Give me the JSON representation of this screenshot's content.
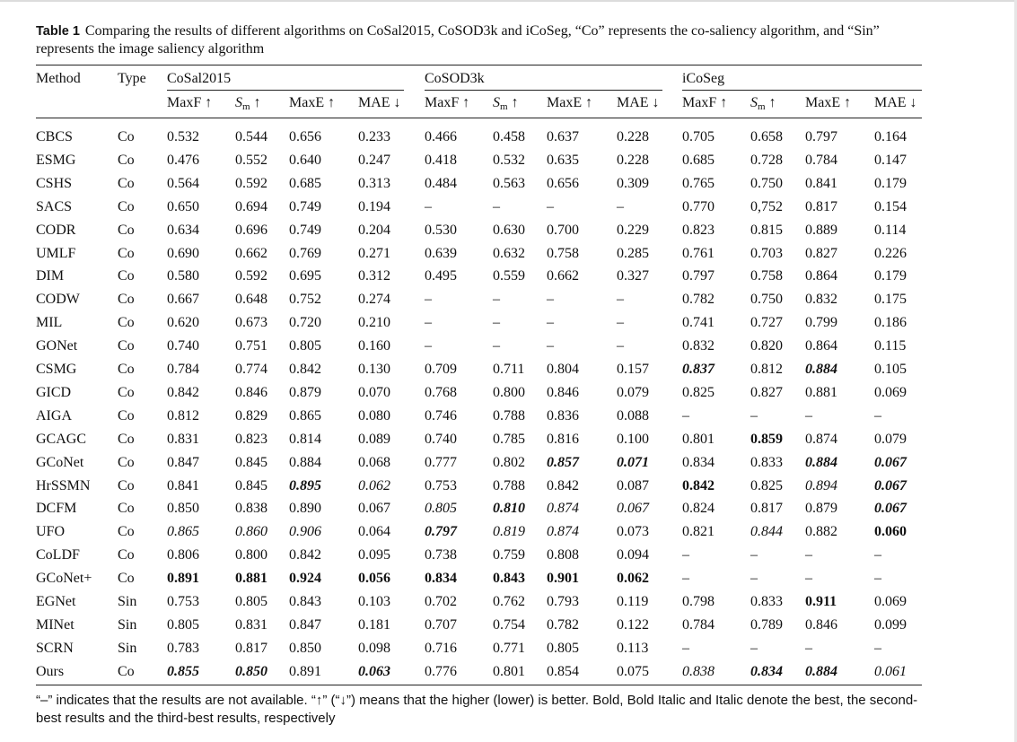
{
  "caption": {
    "label": "Table 1",
    "text": "Comparing the results of different algorithms on CoSal2015, CoSOD3k and iCoSeg, “Co” represents the co-saliency algorithm, and “Sin” represents the image saliency algorithm"
  },
  "header": {
    "method": "Method",
    "type": "Type",
    "groups": [
      "CoSal2015",
      "CoSOD3k",
      "iCoSeg"
    ],
    "metrics": [
      "MaxF ↑",
      "S",
      "m",
      " ↑",
      "MaxE ↑",
      "MAE ↓"
    ]
  },
  "rows": [
    {
      "m": "CBCS",
      "t": "Co",
      "v": [
        [
          "0.532",
          ""
        ],
        [
          "0.544",
          ""
        ],
        [
          "0.656",
          ""
        ],
        [
          "0.233",
          ""
        ],
        [
          "0.466",
          ""
        ],
        [
          "0.458",
          ""
        ],
        [
          "0.637",
          ""
        ],
        [
          "0.228",
          ""
        ],
        [
          "0.705",
          ""
        ],
        [
          "0.658",
          ""
        ],
        [
          "0.797",
          ""
        ],
        [
          "0.164",
          ""
        ]
      ]
    },
    {
      "m": "ESMG",
      "t": "Co",
      "v": [
        [
          "0.476",
          ""
        ],
        [
          "0.552",
          ""
        ],
        [
          "0.640",
          ""
        ],
        [
          "0.247",
          ""
        ],
        [
          "0.418",
          ""
        ],
        [
          "0.532",
          ""
        ],
        [
          "0.635",
          ""
        ],
        [
          "0.228",
          ""
        ],
        [
          "0.685",
          ""
        ],
        [
          "0.728",
          ""
        ],
        [
          "0.784",
          ""
        ],
        [
          "0.147",
          ""
        ]
      ]
    },
    {
      "m": "CSHS",
      "t": "Co",
      "v": [
        [
          "0.564",
          ""
        ],
        [
          "0.592",
          ""
        ],
        [
          "0.685",
          ""
        ],
        [
          "0.313",
          ""
        ],
        [
          "0.484",
          ""
        ],
        [
          "0.563",
          ""
        ],
        [
          "0.656",
          ""
        ],
        [
          "0.309",
          ""
        ],
        [
          "0.765",
          ""
        ],
        [
          "0.750",
          ""
        ],
        [
          "0.841",
          ""
        ],
        [
          "0.179",
          ""
        ]
      ]
    },
    {
      "m": "SACS",
      "t": "Co",
      "v": [
        [
          "0.650",
          ""
        ],
        [
          "0.694",
          ""
        ],
        [
          "0.749",
          ""
        ],
        [
          "0.194",
          ""
        ],
        [
          "–",
          ""
        ],
        [
          "–",
          ""
        ],
        [
          "–",
          ""
        ],
        [
          "–",
          ""
        ],
        [
          "0.770",
          ""
        ],
        [
          "0,752",
          ""
        ],
        [
          "0.817",
          ""
        ],
        [
          "0.154",
          ""
        ]
      ]
    },
    {
      "m": "CODR",
      "t": "Co",
      "v": [
        [
          "0.634",
          ""
        ],
        [
          "0.696",
          ""
        ],
        [
          "0.749",
          ""
        ],
        [
          "0.204",
          ""
        ],
        [
          "0.530",
          ""
        ],
        [
          "0.630",
          ""
        ],
        [
          "0.700",
          ""
        ],
        [
          "0.229",
          ""
        ],
        [
          "0.823",
          ""
        ],
        [
          "0.815",
          ""
        ],
        [
          "0.889",
          ""
        ],
        [
          "0.114",
          ""
        ]
      ]
    },
    {
      "m": "UMLF",
      "t": "Co",
      "v": [
        [
          "0.690",
          ""
        ],
        [
          "0.662",
          ""
        ],
        [
          "0.769",
          ""
        ],
        [
          "0.271",
          ""
        ],
        [
          "0.639",
          ""
        ],
        [
          "0.632",
          ""
        ],
        [
          "0.758",
          ""
        ],
        [
          "0.285",
          ""
        ],
        [
          "0.761",
          ""
        ],
        [
          "0.703",
          ""
        ],
        [
          "0.827",
          ""
        ],
        [
          "0.226",
          ""
        ]
      ]
    },
    {
      "m": "DIM",
      "t": "Co",
      "v": [
        [
          "0.580",
          ""
        ],
        [
          "0.592",
          ""
        ],
        [
          "0.695",
          ""
        ],
        [
          "0.312",
          ""
        ],
        [
          "0.495",
          ""
        ],
        [
          "0.559",
          ""
        ],
        [
          "0.662",
          ""
        ],
        [
          "0.327",
          ""
        ],
        [
          "0.797",
          ""
        ],
        [
          "0.758",
          ""
        ],
        [
          "0.864",
          ""
        ],
        [
          "0.179",
          ""
        ]
      ]
    },
    {
      "m": "CODW",
      "t": "Co",
      "v": [
        [
          "0.667",
          ""
        ],
        [
          "0.648",
          ""
        ],
        [
          "0.752",
          ""
        ],
        [
          "0.274",
          ""
        ],
        [
          "–",
          ""
        ],
        [
          "–",
          ""
        ],
        [
          "–",
          ""
        ],
        [
          "–",
          ""
        ],
        [
          "0.782",
          ""
        ],
        [
          "0.750",
          ""
        ],
        [
          "0.832",
          ""
        ],
        [
          "0.175",
          ""
        ]
      ]
    },
    {
      "m": "MIL",
      "t": "Co",
      "v": [
        [
          "0.620",
          ""
        ],
        [
          "0.673",
          ""
        ],
        [
          "0.720",
          ""
        ],
        [
          "0.210",
          ""
        ],
        [
          "–",
          ""
        ],
        [
          "–",
          ""
        ],
        [
          "–",
          ""
        ],
        [
          "–",
          ""
        ],
        [
          "0.741",
          ""
        ],
        [
          "0.727",
          ""
        ],
        [
          "0.799",
          ""
        ],
        [
          "0.186",
          ""
        ]
      ]
    },
    {
      "m": "GONet",
      "t": "Co",
      "v": [
        [
          "0.740",
          ""
        ],
        [
          "0.751",
          ""
        ],
        [
          "0.805",
          ""
        ],
        [
          "0.160",
          ""
        ],
        [
          "–",
          ""
        ],
        [
          "–",
          ""
        ],
        [
          "–",
          ""
        ],
        [
          "–",
          ""
        ],
        [
          "0.832",
          ""
        ],
        [
          "0.820",
          ""
        ],
        [
          "0.864",
          ""
        ],
        [
          "0.115",
          ""
        ]
      ]
    },
    {
      "m": "CSMG",
      "t": "Co",
      "v": [
        [
          "0.784",
          ""
        ],
        [
          "0.774",
          ""
        ],
        [
          "0.842",
          ""
        ],
        [
          "0.130",
          ""
        ],
        [
          "0.709",
          ""
        ],
        [
          "0.711",
          ""
        ],
        [
          "0.804",
          ""
        ],
        [
          "0.157",
          ""
        ],
        [
          "0.837",
          "bi"
        ],
        [
          "0.812",
          ""
        ],
        [
          "0.884",
          "bi"
        ],
        [
          "0.105",
          ""
        ]
      ]
    },
    {
      "m": "GICD",
      "t": "Co",
      "v": [
        [
          "0.842",
          ""
        ],
        [
          "0.846",
          ""
        ],
        [
          "0.879",
          ""
        ],
        [
          "0.070",
          ""
        ],
        [
          "0.768",
          ""
        ],
        [
          "0.800",
          ""
        ],
        [
          "0.846",
          ""
        ],
        [
          "0.079",
          ""
        ],
        [
          "0.825",
          ""
        ],
        [
          "0.827",
          ""
        ],
        [
          "0.881",
          ""
        ],
        [
          "0.069",
          ""
        ]
      ]
    },
    {
      "m": "AIGA",
      "t": "Co",
      "v": [
        [
          "0.812",
          ""
        ],
        [
          "0.829",
          ""
        ],
        [
          "0.865",
          ""
        ],
        [
          "0.080",
          ""
        ],
        [
          "0.746",
          ""
        ],
        [
          "0.788",
          ""
        ],
        [
          "0.836",
          ""
        ],
        [
          "0.088",
          ""
        ],
        [
          "–",
          ""
        ],
        [
          "–",
          ""
        ],
        [
          "–",
          ""
        ],
        [
          "–",
          ""
        ]
      ]
    },
    {
      "m": "GCAGC",
      "t": "Co",
      "v": [
        [
          "0.831",
          ""
        ],
        [
          "0.823",
          ""
        ],
        [
          "0.814",
          ""
        ],
        [
          "0.089",
          ""
        ],
        [
          "0.740",
          ""
        ],
        [
          "0.785",
          ""
        ],
        [
          "0.816",
          ""
        ],
        [
          "0.100",
          ""
        ],
        [
          "0.801",
          ""
        ],
        [
          "0.859",
          "b"
        ],
        [
          "0.874",
          ""
        ],
        [
          "0.079",
          ""
        ]
      ]
    },
    {
      "m": "GCoNet",
      "t": "Co",
      "v": [
        [
          "0.847",
          ""
        ],
        [
          "0.845",
          ""
        ],
        [
          "0.884",
          ""
        ],
        [
          "0.068",
          ""
        ],
        [
          "0.777",
          ""
        ],
        [
          "0.802",
          ""
        ],
        [
          "0.857",
          "bi"
        ],
        [
          "0.071",
          "bi"
        ],
        [
          "0.834",
          ""
        ],
        [
          "0.833",
          ""
        ],
        [
          "0.884",
          "bi"
        ],
        [
          "0.067",
          "bi"
        ]
      ]
    },
    {
      "m": "HrSSMN",
      "t": "Co",
      "v": [
        [
          "0.841",
          ""
        ],
        [
          "0.845",
          ""
        ],
        [
          "0.895",
          "bi"
        ],
        [
          "0.062",
          "i"
        ],
        [
          "0.753",
          ""
        ],
        [
          "0.788",
          ""
        ],
        [
          "0.842",
          ""
        ],
        [
          "0.087",
          ""
        ],
        [
          "0.842",
          "b"
        ],
        [
          "0.825",
          ""
        ],
        [
          "0.894",
          "i"
        ],
        [
          "0.067",
          "bi"
        ]
      ]
    },
    {
      "m": "DCFM",
      "t": "Co",
      "v": [
        [
          "0.850",
          ""
        ],
        [
          "0.838",
          ""
        ],
        [
          "0.890",
          ""
        ],
        [
          "0.067",
          ""
        ],
        [
          "0.805",
          "i"
        ],
        [
          "0.810",
          "bi"
        ],
        [
          "0.874",
          "i"
        ],
        [
          "0.067",
          "i"
        ],
        [
          "0.824",
          ""
        ],
        [
          "0.817",
          ""
        ],
        [
          "0.879",
          ""
        ],
        [
          "0.067",
          "bi"
        ]
      ]
    },
    {
      "m": "UFO",
      "t": "Co",
      "v": [
        [
          "0.865",
          "i"
        ],
        [
          "0.860",
          "i"
        ],
        [
          "0.906",
          "i"
        ],
        [
          "0.064",
          ""
        ],
        [
          "0.797",
          "bi"
        ],
        [
          "0.819",
          "i"
        ],
        [
          "0.874",
          "i"
        ],
        [
          "0.073",
          ""
        ],
        [
          "0.821",
          ""
        ],
        [
          "0.844",
          "i"
        ],
        [
          "0.882",
          ""
        ],
        [
          "0.060",
          "b"
        ]
      ]
    },
    {
      "m": "CoLDF",
      "t": "Co",
      "v": [
        [
          "0.806",
          ""
        ],
        [
          "0.800",
          ""
        ],
        [
          "0.842",
          ""
        ],
        [
          "0.095",
          ""
        ],
        [
          "0.738",
          ""
        ],
        [
          "0.759",
          ""
        ],
        [
          "0.808",
          ""
        ],
        [
          "0.094",
          ""
        ],
        [
          "–",
          ""
        ],
        [
          "–",
          ""
        ],
        [
          "–",
          ""
        ],
        [
          "–",
          ""
        ]
      ]
    },
    {
      "m": "GCoNet+",
      "t": "Co",
      "v": [
        [
          "0.891",
          "b"
        ],
        [
          "0.881",
          "b"
        ],
        [
          "0.924",
          "b"
        ],
        [
          "0.056",
          "b"
        ],
        [
          "0.834",
          "b"
        ],
        [
          "0.843",
          "b"
        ],
        [
          "0.901",
          "b"
        ],
        [
          "0.062",
          "b"
        ],
        [
          "–",
          ""
        ],
        [
          "–",
          ""
        ],
        [
          "–",
          ""
        ],
        [
          "–",
          ""
        ]
      ]
    },
    {
      "m": "EGNet",
      "t": "Sin",
      "v": [
        [
          "0.753",
          ""
        ],
        [
          "0.805",
          ""
        ],
        [
          "0.843",
          ""
        ],
        [
          "0.103",
          ""
        ],
        [
          "0.702",
          ""
        ],
        [
          "0.762",
          ""
        ],
        [
          "0.793",
          ""
        ],
        [
          "0.119",
          ""
        ],
        [
          "0.798",
          ""
        ],
        [
          "0.833",
          ""
        ],
        [
          "0.911",
          "b"
        ],
        [
          "0.069",
          ""
        ]
      ]
    },
    {
      "m": "MINet",
      "t": "Sin",
      "v": [
        [
          "0.805",
          ""
        ],
        [
          "0.831",
          ""
        ],
        [
          "0.847",
          ""
        ],
        [
          "0.181",
          ""
        ],
        [
          "0.707",
          ""
        ],
        [
          "0.754",
          ""
        ],
        [
          "0.782",
          ""
        ],
        [
          "0.122",
          ""
        ],
        [
          "0.784",
          ""
        ],
        [
          "0.789",
          ""
        ],
        [
          "0.846",
          ""
        ],
        [
          "0.099",
          ""
        ]
      ]
    },
    {
      "m": "SCRN",
      "t": "Sin",
      "v": [
        [
          "0.783",
          ""
        ],
        [
          "0.817",
          ""
        ],
        [
          "0.850",
          ""
        ],
        [
          "0.098",
          ""
        ],
        [
          "0.716",
          ""
        ],
        [
          "0.771",
          ""
        ],
        [
          "0.805",
          ""
        ],
        [
          "0.113",
          ""
        ],
        [
          "–",
          ""
        ],
        [
          "–",
          ""
        ],
        [
          "–",
          ""
        ],
        [
          "–",
          ""
        ]
      ]
    },
    {
      "m": "Ours",
      "t": "Co",
      "v": [
        [
          "0.855",
          "bi"
        ],
        [
          "0.850",
          "bi"
        ],
        [
          "0.891",
          ""
        ],
        [
          "0.063",
          "bi"
        ],
        [
          "0.776",
          ""
        ],
        [
          "0.801",
          ""
        ],
        [
          "0.854",
          ""
        ],
        [
          "0.075",
          ""
        ],
        [
          "0.838",
          "i"
        ],
        [
          "0.834",
          "bi"
        ],
        [
          "0.884",
          "bi"
        ],
        [
          "0.061",
          "i"
        ]
      ]
    }
  ],
  "footnote": "“–” indicates that the results are not available. “↑” (“↓”) means that the higher (lower) is better. Bold, Bold Italic and Italic denote the best, the second-best results and the third-best results, respectively"
}
